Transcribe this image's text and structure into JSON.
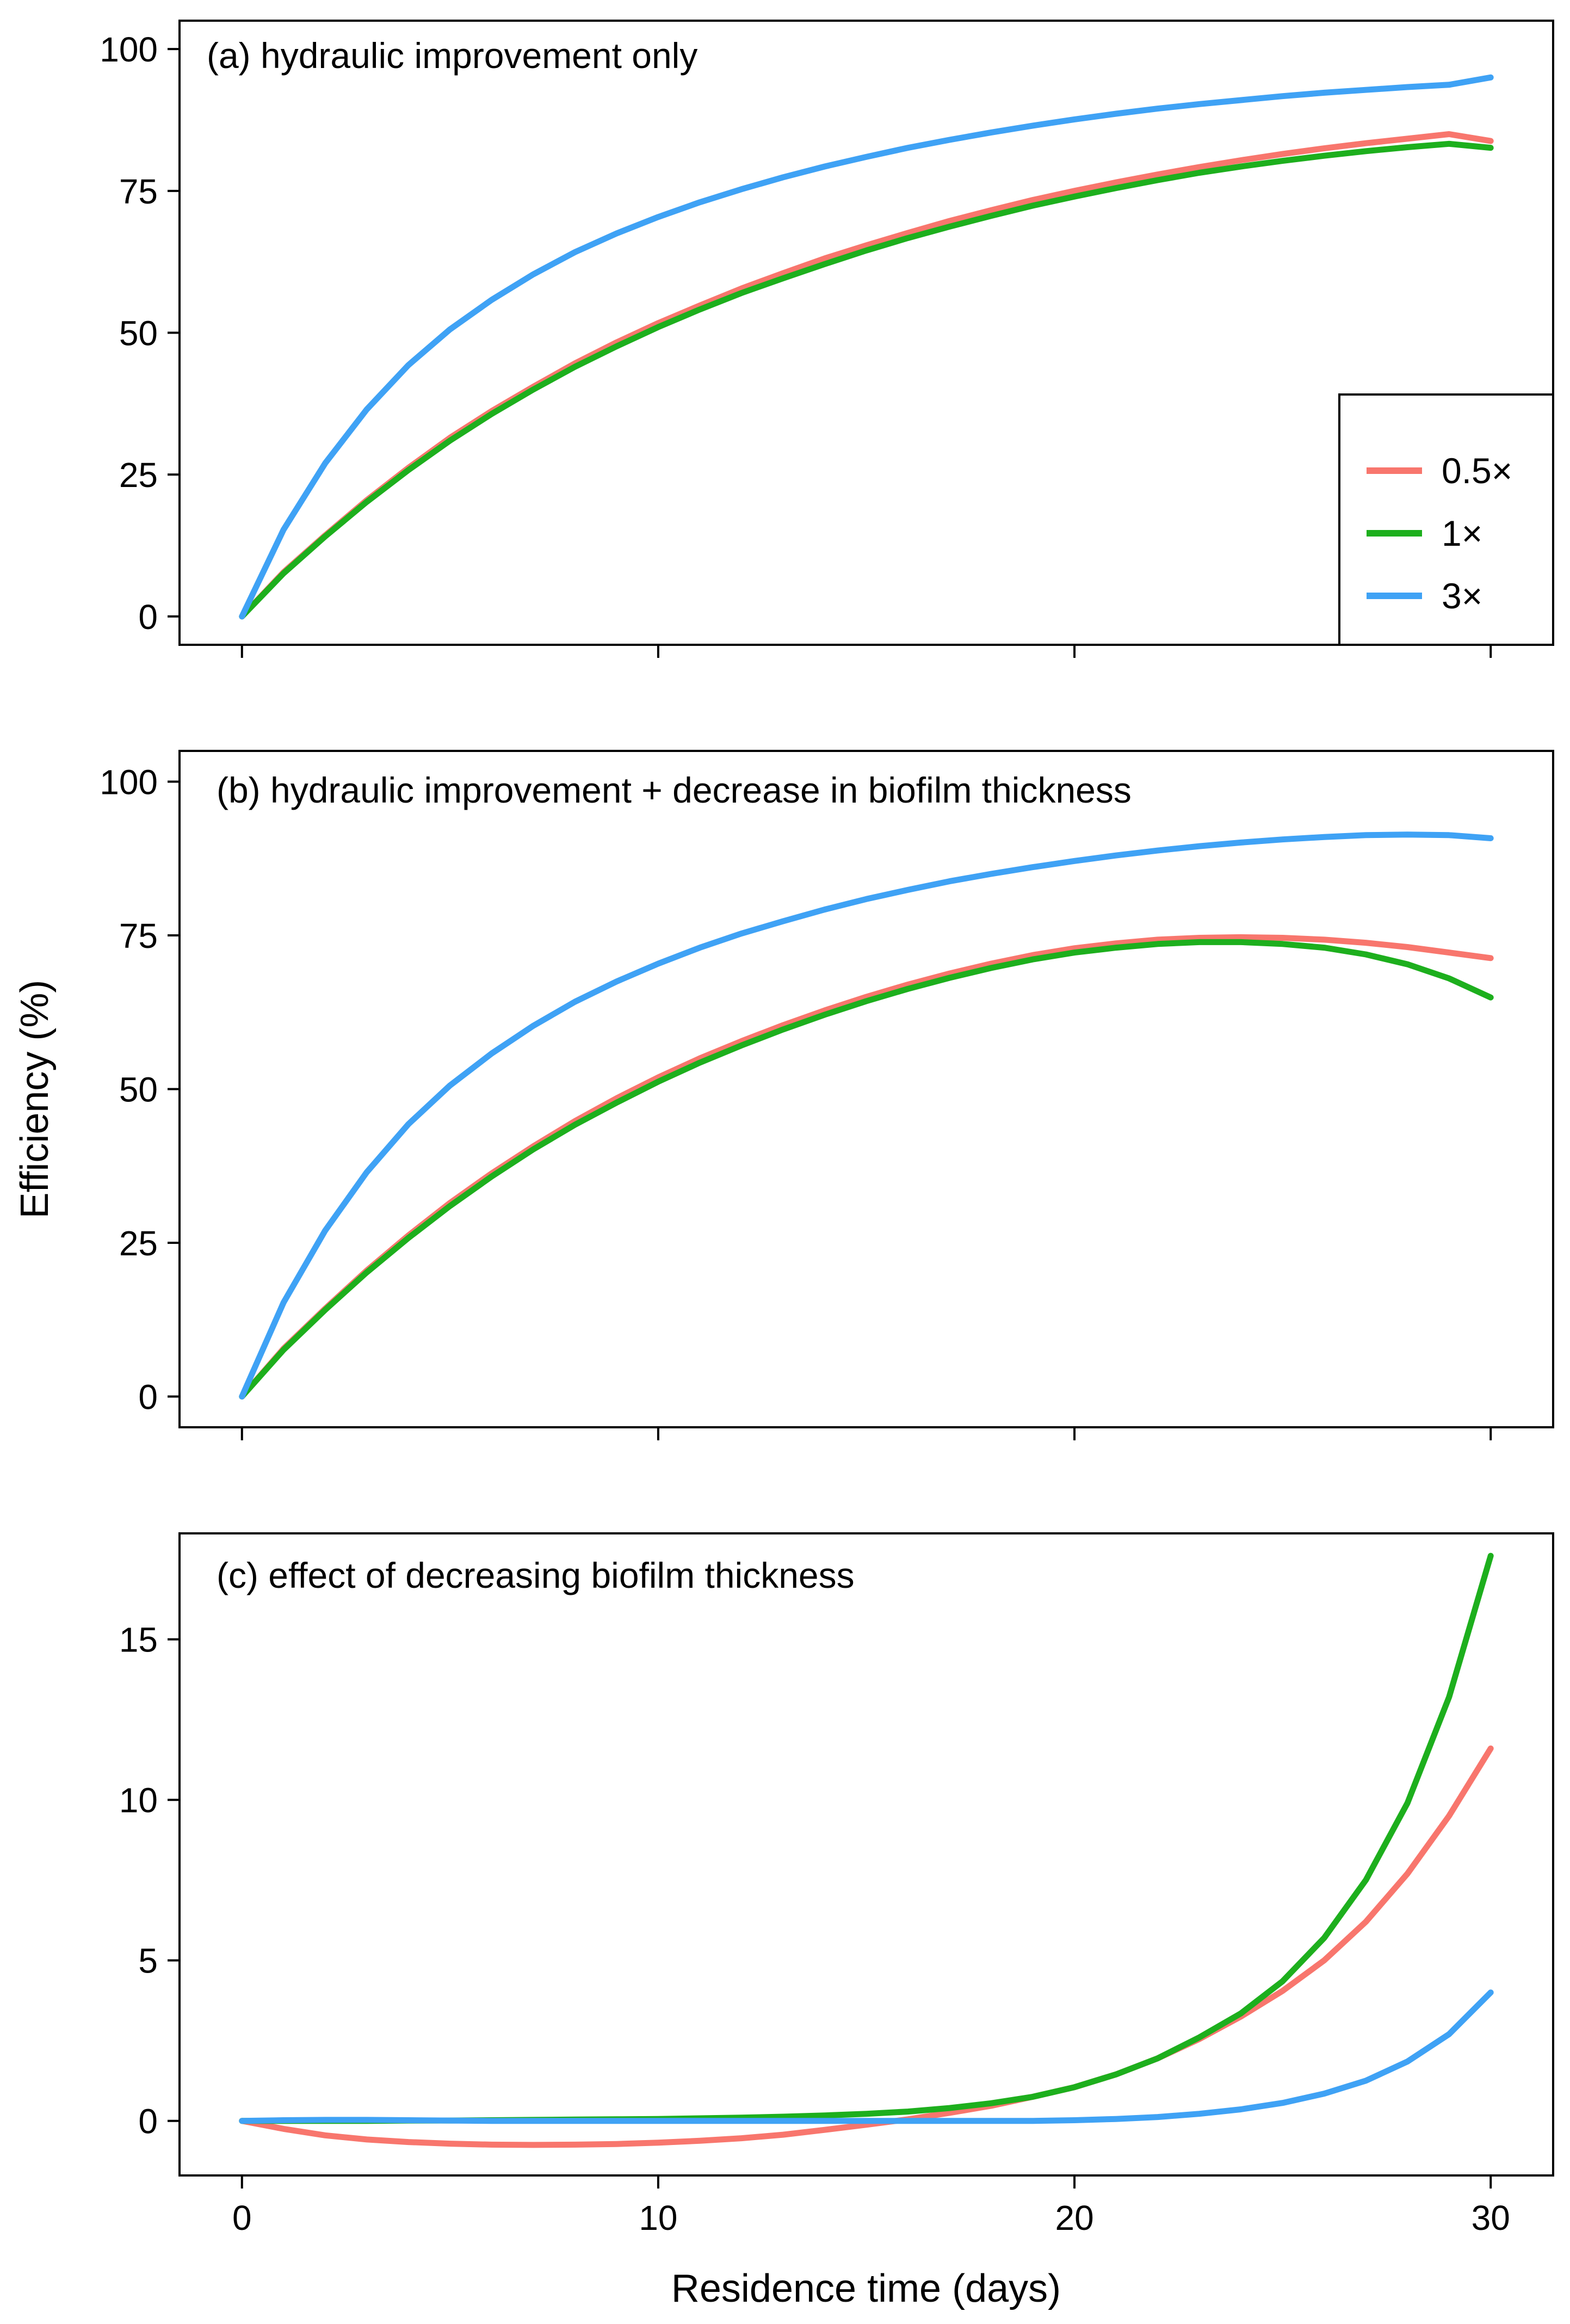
{
  "figure": {
    "ylabel": "Efficiency (%)",
    "xlabel": "Residence time (days)",
    "colors": {
      "s05": "#F8766D",
      "s1": "#1DAF1D",
      "s3": "#3FA2F5"
    }
  },
  "legend": {
    "entries": [
      {
        "label": "0.5×",
        "color": "#F8766D"
      },
      {
        "label": "1×",
        "color": "#1DAF1D"
      },
      {
        "label": "3×",
        "color": "#3FA2F5"
      }
    ]
  },
  "chart_data": [
    {
      "type": "line",
      "title": "(a) hydraulic improvement only",
      "xlabel": "",
      "ylabel": "",
      "xlim": [
        -1.5,
        31.5
      ],
      "ylim": [
        -5,
        105
      ],
      "xticks": [
        0,
        10,
        20,
        30
      ],
      "xtick_labels": [
        "",
        "",
        "",
        ""
      ],
      "yticks": [
        0,
        25,
        50,
        75,
        100
      ],
      "ytick_labels": [
        "0",
        "25",
        "50",
        "75",
        "100"
      ],
      "legend_position": "right",
      "x": [
        0,
        1,
        2,
        3,
        4,
        5,
        6,
        7,
        8,
        9,
        10,
        11,
        12,
        13,
        14,
        15,
        16,
        17,
        18,
        19,
        20,
        21,
        22,
        23,
        24,
        25,
        26,
        27,
        28,
        29,
        30
      ],
      "series": [
        {
          "name": "0.5×",
          "color": "#F8766D",
          "values": [
            0,
            7.8,
            14.3,
            20.5,
            26.2,
            31.5,
            36.2,
            40.5,
            44.6,
            48.3,
            51.7,
            54.8,
            57.8,
            60.5,
            63.1,
            65.4,
            67.6,
            69.7,
            71.6,
            73.4,
            75.0,
            76.5,
            77.9,
            79.2,
            80.4,
            81.5,
            82.5,
            83.4,
            84.2,
            85.0,
            83.8
          ]
        },
        {
          "name": "1×",
          "color": "#1DAF1D",
          "values": [
            0,
            7.6,
            14.1,
            20.2,
            25.8,
            31.0,
            35.7,
            40.0,
            44.0,
            47.6,
            51.0,
            54.1,
            57.0,
            59.6,
            62.1,
            64.5,
            66.7,
            68.7,
            70.6,
            72.4,
            74.0,
            75.5,
            76.9,
            78.2,
            79.3,
            80.3,
            81.2,
            82.0,
            82.7,
            83.3,
            82.6
          ]
        },
        {
          "name": "3×",
          "color": "#3FA2F5",
          "values": [
            0,
            15.3,
            27.0,
            36.5,
            44.3,
            50.6,
            55.8,
            60.3,
            64.2,
            67.5,
            70.4,
            73.0,
            75.3,
            77.4,
            79.3,
            81.0,
            82.6,
            84.0,
            85.3,
            86.5,
            87.6,
            88.6,
            89.5,
            90.3,
            91.0,
            91.7,
            92.3,
            92.8,
            93.3,
            93.7,
            95.0
          ]
        }
      ]
    },
    {
      "type": "line",
      "title": "(b) hydraulic improvement + decrease in biofilm thickness",
      "xlabel": "",
      "ylabel": "Efficiency (%)",
      "xlim": [
        -1.5,
        31.5
      ],
      "ylim": [
        -5,
        105
      ],
      "xticks": [
        0,
        10,
        20,
        30
      ],
      "xtick_labels": [
        "",
        "",
        "",
        ""
      ],
      "yticks": [
        0,
        25,
        50,
        75,
        100
      ],
      "ytick_labels": [
        "0",
        "25",
        "50",
        "75",
        "100"
      ],
      "x": [
        0,
        1,
        2,
        3,
        4,
        5,
        6,
        7,
        8,
        9,
        10,
        11,
        12,
        13,
        14,
        15,
        16,
        17,
        18,
        19,
        20,
        21,
        22,
        23,
        24,
        25,
        26,
        27,
        28,
        29,
        30
      ],
      "series": [
        {
          "name": "0.5×",
          "color": "#F8766D",
          "values": [
            0,
            7.8,
            14.3,
            20.5,
            26.2,
            31.5,
            36.3,
            40.7,
            44.8,
            48.5,
            51.9,
            55.0,
            57.8,
            60.4,
            62.8,
            65.0,
            67.0,
            68.8,
            70.4,
            71.8,
            72.9,
            73.7,
            74.3,
            74.6,
            74.7,
            74.6,
            74.3,
            73.8,
            73.1,
            72.2,
            71.3
          ]
        },
        {
          "name": "1×",
          "color": "#1DAF1D",
          "values": [
            0,
            7.6,
            14.1,
            20.2,
            25.8,
            31.0,
            35.8,
            40.2,
            44.2,
            47.8,
            51.2,
            54.3,
            57.1,
            59.7,
            62.1,
            64.3,
            66.3,
            68.1,
            69.7,
            71.1,
            72.2,
            73.0,
            73.6,
            73.9,
            73.9,
            73.6,
            73.0,
            71.9,
            70.3,
            68.0,
            64.9
          ]
        },
        {
          "name": "3×",
          "color": "#3FA2F5",
          "values": [
            0,
            15.3,
            27.0,
            36.5,
            44.3,
            50.6,
            55.8,
            60.3,
            64.2,
            67.5,
            70.4,
            73.0,
            75.3,
            77.3,
            79.2,
            80.9,
            82.4,
            83.8,
            85.0,
            86.1,
            87.1,
            88.0,
            88.8,
            89.5,
            90.1,
            90.6,
            91.0,
            91.3,
            91.4,
            91.3,
            90.8
          ]
        }
      ]
    },
    {
      "type": "line",
      "title": "(c) effect of decreasing biofilm thickness",
      "xlabel": "Residence time (days)",
      "ylabel": "",
      "xlim": [
        -1.5,
        31.5
      ],
      "ylim": [
        -1.7,
        18.3
      ],
      "xticks": [
        0,
        10,
        20,
        30
      ],
      "xtick_labels": [
        "0",
        "10",
        "20",
        "30"
      ],
      "yticks": [
        0,
        5,
        10,
        15
      ],
      "ytick_labels": [
        "0",
        "5",
        "10",
        "15"
      ],
      "x": [
        0,
        1,
        2,
        3,
        4,
        5,
        6,
        7,
        8,
        9,
        10,
        11,
        12,
        13,
        14,
        15,
        16,
        17,
        18,
        19,
        20,
        21,
        22,
        23,
        24,
        25,
        26,
        27,
        28,
        29,
        30
      ],
      "series": [
        {
          "name": "0.5×",
          "color": "#F8766D",
          "values": [
            0,
            -0.25,
            -0.45,
            -0.58,
            -0.66,
            -0.71,
            -0.74,
            -0.75,
            -0.74,
            -0.72,
            -0.68,
            -0.62,
            -0.54,
            -0.43,
            -0.28,
            -0.12,
            0.05,
            0.25,
            0.47,
            0.75,
            1.05,
            1.45,
            1.95,
            2.55,
            3.25,
            4.05,
            5.0,
            6.2,
            7.7,
            9.5,
            11.6
          ]
        },
        {
          "name": "1×",
          "color": "#1DAF1D",
          "values": [
            0,
            0.0,
            0.0,
            0.0,
            0.01,
            0.01,
            0.02,
            0.03,
            0.04,
            0.05,
            0.06,
            0.08,
            0.1,
            0.13,
            0.17,
            0.22,
            0.29,
            0.4,
            0.55,
            0.75,
            1.05,
            1.45,
            1.95,
            2.6,
            3.35,
            4.35,
            5.7,
            7.5,
            9.9,
            13.2,
            17.6
          ]
        },
        {
          "name": "3×",
          "color": "#3FA2F5",
          "values": [
            0,
            0.02,
            0.03,
            0.03,
            0.02,
            0.01,
            0.0,
            0.0,
            0.0,
            0.0,
            0.0,
            0.0,
            0.0,
            0.0,
            0.0,
            0.0,
            0.0,
            0.0,
            0.0,
            0.0,
            0.02,
            0.06,
            0.12,
            0.22,
            0.36,
            0.56,
            0.85,
            1.25,
            1.85,
            2.7,
            4.0
          ]
        }
      ]
    }
  ]
}
